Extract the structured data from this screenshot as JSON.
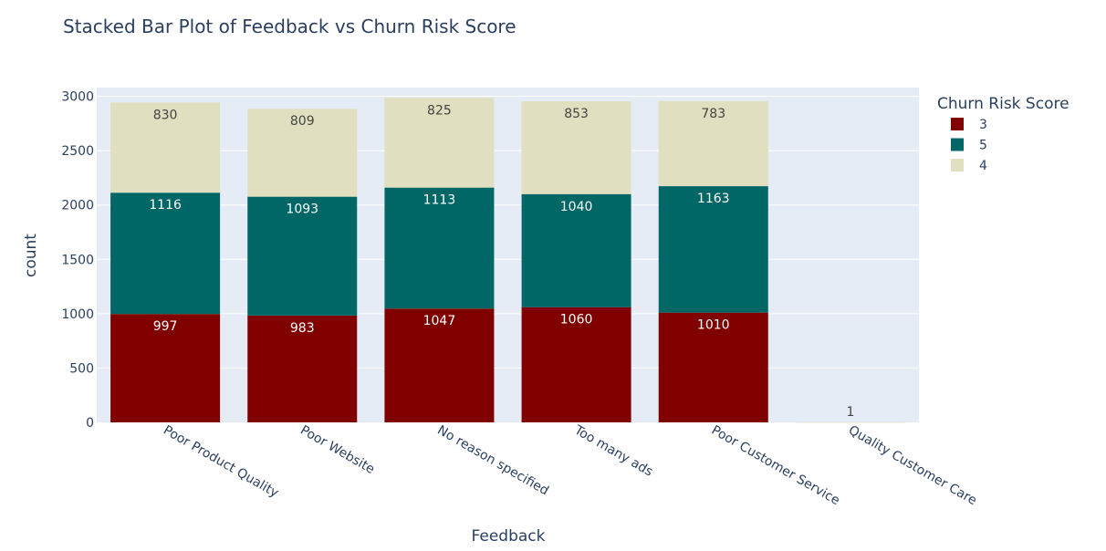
{
  "chart_data": {
    "type": "bar",
    "barmode": "stack",
    "title": "Stacked Bar Plot of Feedback vs Churn Risk Score",
    "xlabel": "Feedback",
    "ylabel": "count",
    "ylim": [
      0,
      3080
    ],
    "yticks": [
      "0",
      "500",
      "1000",
      "1500",
      "2000",
      "2500",
      "3000"
    ],
    "grid": true,
    "legend_title": "Churn Risk Score",
    "legend_position": "right",
    "categories": [
      "Poor Product Quality",
      "Poor Website",
      "No reason specified",
      "Too many ads",
      "Poor Customer Service",
      "Quality Customer Care"
    ],
    "series": [
      {
        "name": "3",
        "color": "#800000",
        "label_color": "#ffffff",
        "values": [
          997,
          983,
          1047,
          1060,
          1010,
          0
        ],
        "labels": [
          "997",
          "983",
          "1047",
          "1060",
          "1010",
          ""
        ]
      },
      {
        "name": "5",
        "color": "#006666",
        "label_color": "#ffffff",
        "values": [
          1116,
          1093,
          1113,
          1040,
          1163,
          0
        ],
        "labels": [
          "1116",
          "1093",
          "1113",
          "1040",
          "1163",
          ""
        ]
      },
      {
        "name": "4",
        "color": "#e0dfbf",
        "label_color": "#444444",
        "values": [
          830,
          809,
          825,
          853,
          783,
          1
        ],
        "labels": [
          "830",
          "809",
          "825",
          "853",
          "783",
          "1"
        ]
      }
    ],
    "colors": {
      "plot_bg": "#e5ecf6",
      "grid": "#ffffff",
      "text": "#2a3f5f"
    }
  }
}
